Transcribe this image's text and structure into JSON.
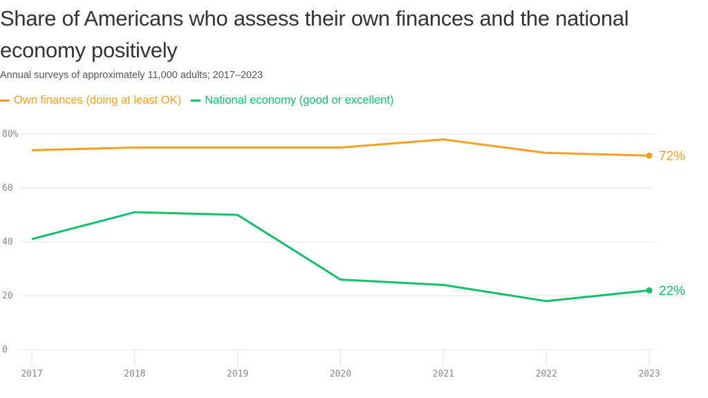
{
  "chart_data": {
    "type": "line",
    "title": "Share of Americans who assess their own finances and the national economy positively",
    "subtitle": "Annual surveys of approximately 11,000 adults; 2017–2023",
    "xlabel": "",
    "ylabel": "",
    "x": [
      "2017",
      "2018",
      "2019",
      "2020",
      "2021",
      "2022",
      "2023"
    ],
    "ylim": [
      0,
      80
    ],
    "yticks": [
      {
        "value": 0,
        "label": "0"
      },
      {
        "value": 20,
        "label": "20"
      },
      {
        "value": 40,
        "label": "40"
      },
      {
        "value": 60,
        "label": "60"
      },
      {
        "value": 80,
        "label": "80%"
      }
    ],
    "grid": true,
    "legend_position": "top-left",
    "series": [
      {
        "name": "Own finances (doing at least OK)",
        "color": "#f8a01c",
        "values": [
          74,
          75,
          75,
          75,
          78,
          73,
          72
        ],
        "end_label": "72%"
      },
      {
        "name": "National economy (good or excellent)",
        "color": "#0fc16a",
        "values": [
          41,
          51,
          50,
          26,
          24,
          18,
          22
        ],
        "end_label": "22%"
      }
    ]
  }
}
